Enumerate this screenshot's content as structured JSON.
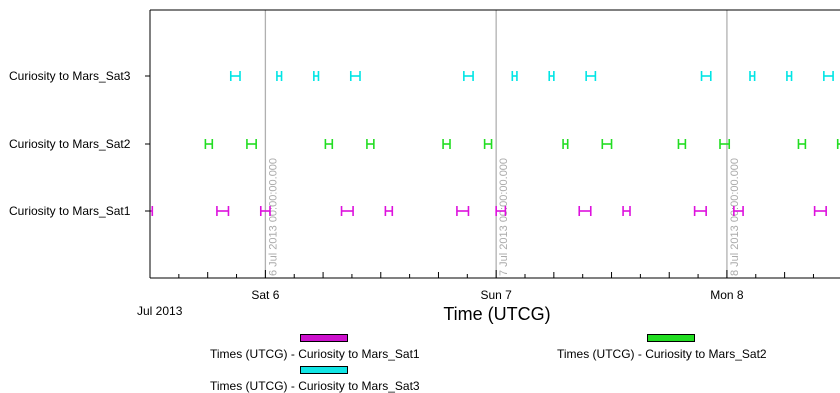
{
  "chart_data": {
    "type": "timeline",
    "xlabel": "Time (UTCG)",
    "start_label": "Jul 2013",
    "x_tick_labels": [
      "Sat 6",
      "Sun 7",
      "Mon 8"
    ],
    "day_line_labels": [
      "6 Jul 2013 00:00:00.000",
      "7 Jul 2013 00:00:00.000",
      "8 Jul 2013 00:00:00.000"
    ],
    "x_range_days": [
      -0.5,
      2.49
    ],
    "series": [
      {
        "name": "Curiosity to Mars_Sat3",
        "color": "#00e5e5",
        "intervals": [
          [
            -0.15,
            -0.11
          ],
          [
            0.05,
            0.07
          ],
          [
            0.21,
            0.23
          ],
          [
            0.37,
            0.41
          ],
          [
            0.86,
            0.9
          ],
          [
            1.07,
            1.09
          ],
          [
            1.23,
            1.25
          ],
          [
            1.39,
            1.43
          ],
          [
            1.89,
            1.93
          ],
          [
            2.1,
            2.12
          ],
          [
            2.26,
            2.28
          ],
          [
            2.42,
            2.46
          ]
        ]
      },
      {
        "name": "Curiosity to Mars_Sat2",
        "color": "#22dd22",
        "intervals": [
          [
            -0.26,
            -0.23
          ],
          [
            -0.08,
            -0.04
          ],
          [
            0.26,
            0.29
          ],
          [
            0.44,
            0.47
          ],
          [
            0.77,
            0.8
          ],
          [
            0.95,
            0.98
          ],
          [
            1.29,
            1.31
          ],
          [
            1.46,
            1.5
          ],
          [
            1.79,
            1.82
          ],
          [
            1.97,
            2.01
          ],
          [
            2.31,
            2.34
          ],
          [
            2.48,
            2.51
          ]
        ]
      },
      {
        "name": "Curiosity to Mars_Sat1",
        "color": "#dd11dd",
        "intervals": [
          [
            -0.51,
            -0.49
          ],
          [
            -0.21,
            -0.16
          ],
          [
            -0.02,
            0.02
          ],
          [
            0.33,
            0.38
          ],
          [
            0.52,
            0.55
          ],
          [
            0.83,
            0.88
          ],
          [
            1.0,
            1.04
          ],
          [
            1.36,
            1.41
          ],
          [
            1.55,
            1.58
          ],
          [
            1.86,
            1.91
          ],
          [
            2.03,
            2.07
          ],
          [
            2.38,
            2.43
          ]
        ]
      }
    ],
    "legend": [
      {
        "label": "Times (UTCG) - Curiosity to Mars_Sat1",
        "color": "#cc11cc"
      },
      {
        "label": "Times (UTCG) - Curiosity to Mars_Sat2",
        "color": "#22dd22"
      },
      {
        "label": "Times (UTCG) - Curiosity to Mars_Sat3",
        "color": "#11e5e5"
      }
    ]
  }
}
